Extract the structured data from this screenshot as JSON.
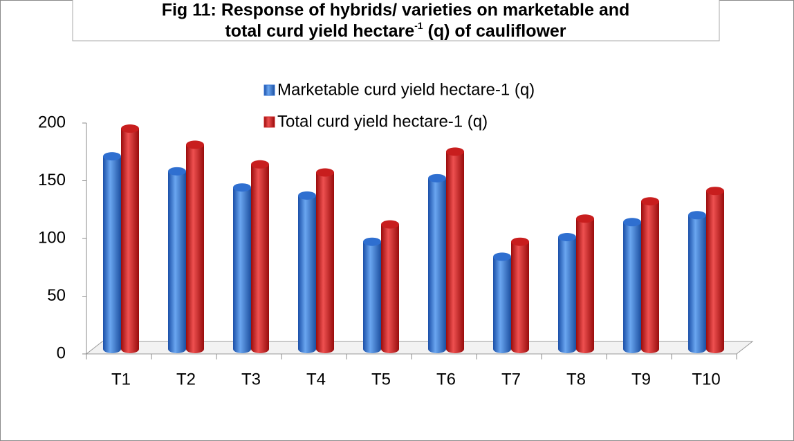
{
  "chart_data": {
    "type": "bar",
    "title": {
      "line1": "Fig 11: Response of hybrids/ varieties on marketable and",
      "line2": "total curd yield hectare",
      "superscript": "-1",
      "line2_end": " (q) of cauliflower"
    },
    "categories": [
      "T1",
      "T2",
      "T3",
      "T4",
      "T5",
      "T6",
      "T7",
      "T8",
      "T9",
      "T10"
    ],
    "series": [
      {
        "name": "Marketable curd yield hectare-1 (q)",
        "color": "#2f6fd0",
        "values": [
          167,
          154,
          140,
          133,
          93,
          148,
          80,
          97,
          110,
          116
        ]
      },
      {
        "name": "Total curd yield hectare-1 (q)",
        "color": "#c81e1e",
        "values": [
          191,
          177,
          160,
          153,
          108,
          171,
          93,
          113,
          128,
          137
        ]
      }
    ],
    "ylim": [
      0,
      200
    ],
    "yticks": [
      0,
      50,
      100,
      150,
      200
    ],
    "legend": "top"
  }
}
